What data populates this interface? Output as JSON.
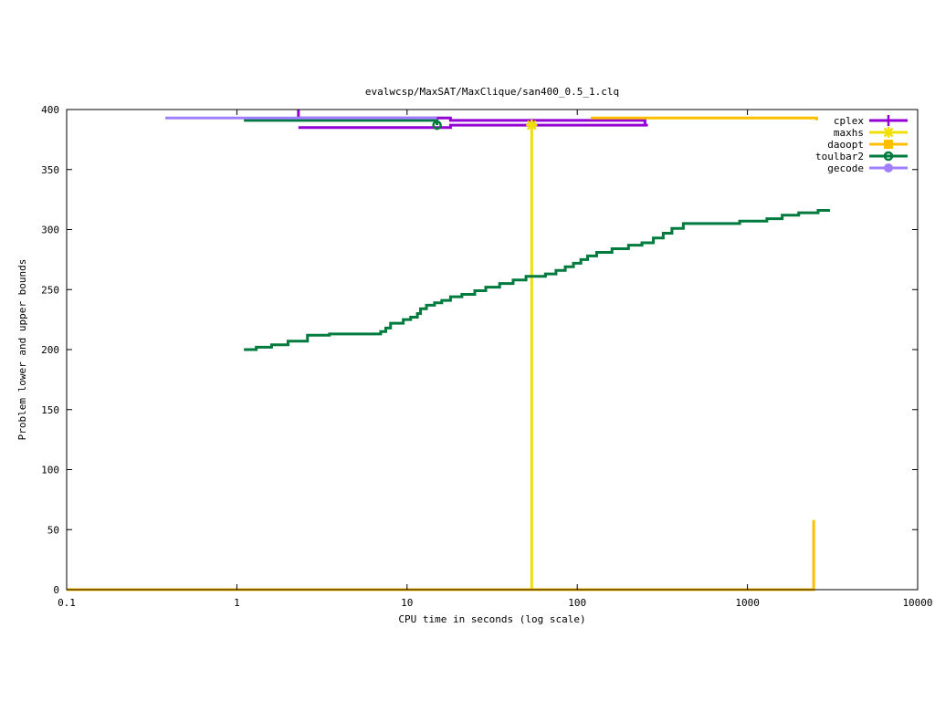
{
  "chart_data": {
    "type": "line",
    "title": "evalwcsp/MaxSAT/MaxClique/san400_0.5_1.clq",
    "xlabel": "CPU time in seconds (log scale)",
    "ylabel": "Problem lower and upper bounds",
    "xscale": "log",
    "xlim": [
      0.1,
      10000
    ],
    "ylim": [
      0,
      400
    ],
    "xticks": [
      {
        "value": 0.1,
        "label": "0.1"
      },
      {
        "value": 1,
        "label": "1"
      },
      {
        "value": 10,
        "label": "10"
      },
      {
        "value": 100,
        "label": "100"
      },
      {
        "value": 1000,
        "label": "1000"
      },
      {
        "value": 10000,
        "label": "10000"
      }
    ],
    "yticks": [
      {
        "value": 0,
        "label": "0"
      },
      {
        "value": 50,
        "label": "50"
      },
      {
        "value": 100,
        "label": "100"
      },
      {
        "value": 150,
        "label": "150"
      },
      {
        "value": 200,
        "label": "200"
      },
      {
        "value": 250,
        "label": "250"
      },
      {
        "value": 300,
        "label": "300"
      },
      {
        "value": 350,
        "label": "350"
      },
      {
        "value": 400,
        "label": "400"
      }
    ],
    "grid": false,
    "legend_position": "top-right",
    "series": [
      {
        "name": "cplex",
        "color": "#9400d3",
        "marker": "plus",
        "marker_x": [],
        "marker_y": [],
        "lines": [
          [
            [
              2.3,
              400
            ],
            [
              2.3,
              393
            ],
            [
              18,
              393
            ],
            [
              18,
              391
            ],
            [
              250,
              391
            ],
            [
              250,
              387
            ]
          ],
          [
            [
              2.3,
              385
            ],
            [
              18,
              385
            ],
            [
              18,
              387
            ],
            [
              260,
              387
            ]
          ]
        ]
      },
      {
        "name": "maxhs",
        "color": "#f0e000",
        "marker": "star",
        "marker_x": [
          54
        ],
        "marker_y": [
          387
        ],
        "lines": [
          [
            [
              54,
              388
            ],
            [
              54,
              0
            ]
          ]
        ]
      },
      {
        "name": "daoopt",
        "color": "#ffbf00",
        "marker": "square",
        "marker_x": [],
        "marker_y": [],
        "lines": [
          [
            [
              120,
              393
            ],
            [
              2550,
              393
            ],
            [
              2550,
              391
            ]
          ],
          [
            [
              0.1,
              0
            ],
            [
              2450,
              0
            ],
            [
              2450,
              58
            ]
          ]
        ]
      },
      {
        "name": "toulbar2",
        "color": "#007a3d",
        "marker": "circle",
        "marker_x": [
          15
        ],
        "marker_y": [
          387
        ],
        "lines": [
          [
            [
              1.1,
              391
            ],
            [
              15,
              391
            ],
            [
              15,
              387
            ]
          ],
          [
            [
              1.1,
              200
            ],
            [
              1.3,
              200
            ],
            [
              1.3,
              202
            ],
            [
              1.6,
              202
            ],
            [
              1.6,
              204
            ],
            [
              2.0,
              204
            ],
            [
              2.0,
              207
            ],
            [
              2.6,
              207
            ],
            [
              2.6,
              212
            ],
            [
              3.5,
              212
            ],
            [
              3.5,
              213
            ],
            [
              7.0,
              213
            ],
            [
              7.0,
              215
            ],
            [
              7.5,
              215
            ],
            [
              7.5,
              218
            ],
            [
              8.0,
              218
            ],
            [
              8.0,
              222
            ],
            [
              9.5,
              222
            ],
            [
              9.5,
              225
            ],
            [
              10.5,
              225
            ],
            [
              10.5,
              227
            ],
            [
              11.5,
              227
            ],
            [
              11.5,
              230
            ],
            [
              12.0,
              230
            ],
            [
              12.0,
              234
            ],
            [
              13.0,
              234
            ],
            [
              13.0,
              237
            ],
            [
              14.5,
              237
            ],
            [
              14.5,
              239
            ],
            [
              16.0,
              239
            ],
            [
              16.0,
              241
            ],
            [
              18.0,
              241
            ],
            [
              18.0,
              244
            ],
            [
              21.0,
              244
            ],
            [
              21.0,
              246
            ],
            [
              25.0,
              246
            ],
            [
              25.0,
              249
            ],
            [
              29.0,
              249
            ],
            [
              29.0,
              252
            ],
            [
              35.0,
              252
            ],
            [
              35.0,
              255
            ],
            [
              42.0,
              255
            ],
            [
              42.0,
              258
            ],
            [
              50.0,
              258
            ],
            [
              50.0,
              261
            ],
            [
              65.0,
              261
            ],
            [
              65.0,
              263
            ],
            [
              75.0,
              263
            ],
            [
              75.0,
              266
            ],
            [
              85.0,
              266
            ],
            [
              85.0,
              269
            ],
            [
              95.0,
              269
            ],
            [
              95.0,
              272
            ],
            [
              105.0,
              272
            ],
            [
              105.0,
              275
            ],
            [
              115.0,
              275
            ],
            [
              115.0,
              278
            ],
            [
              130.0,
              278
            ],
            [
              130.0,
              281
            ],
            [
              160.0,
              281
            ],
            [
              160.0,
              284
            ],
            [
              200.0,
              284
            ],
            [
              200.0,
              287
            ],
            [
              240.0,
              287
            ],
            [
              240.0,
              289
            ],
            [
              280.0,
              289
            ],
            [
              280.0,
              293
            ],
            [
              320.0,
              293
            ],
            [
              320.0,
              297
            ],
            [
              360.0,
              297
            ],
            [
              360.0,
              301
            ],
            [
              420.0,
              301
            ],
            [
              420.0,
              305
            ],
            [
              900.0,
              305
            ],
            [
              900.0,
              307
            ],
            [
              1300.0,
              307
            ],
            [
              1300.0,
              309
            ],
            [
              1600.0,
              309
            ],
            [
              1600.0,
              312
            ],
            [
              2000.0,
              312
            ],
            [
              2000.0,
              314
            ],
            [
              2600.0,
              314
            ],
            [
              2600.0,
              316
            ],
            [
              3000.0,
              316
            ],
            [
              3000.0,
              317
            ]
          ]
        ]
      },
      {
        "name": "gecode",
        "color": "#a080ff",
        "marker": "circle-filled",
        "marker_x": [],
        "marker_y": [],
        "lines": [
          [
            [
              0.38,
              393
            ],
            [
              15,
              393
            ]
          ]
        ]
      }
    ]
  }
}
